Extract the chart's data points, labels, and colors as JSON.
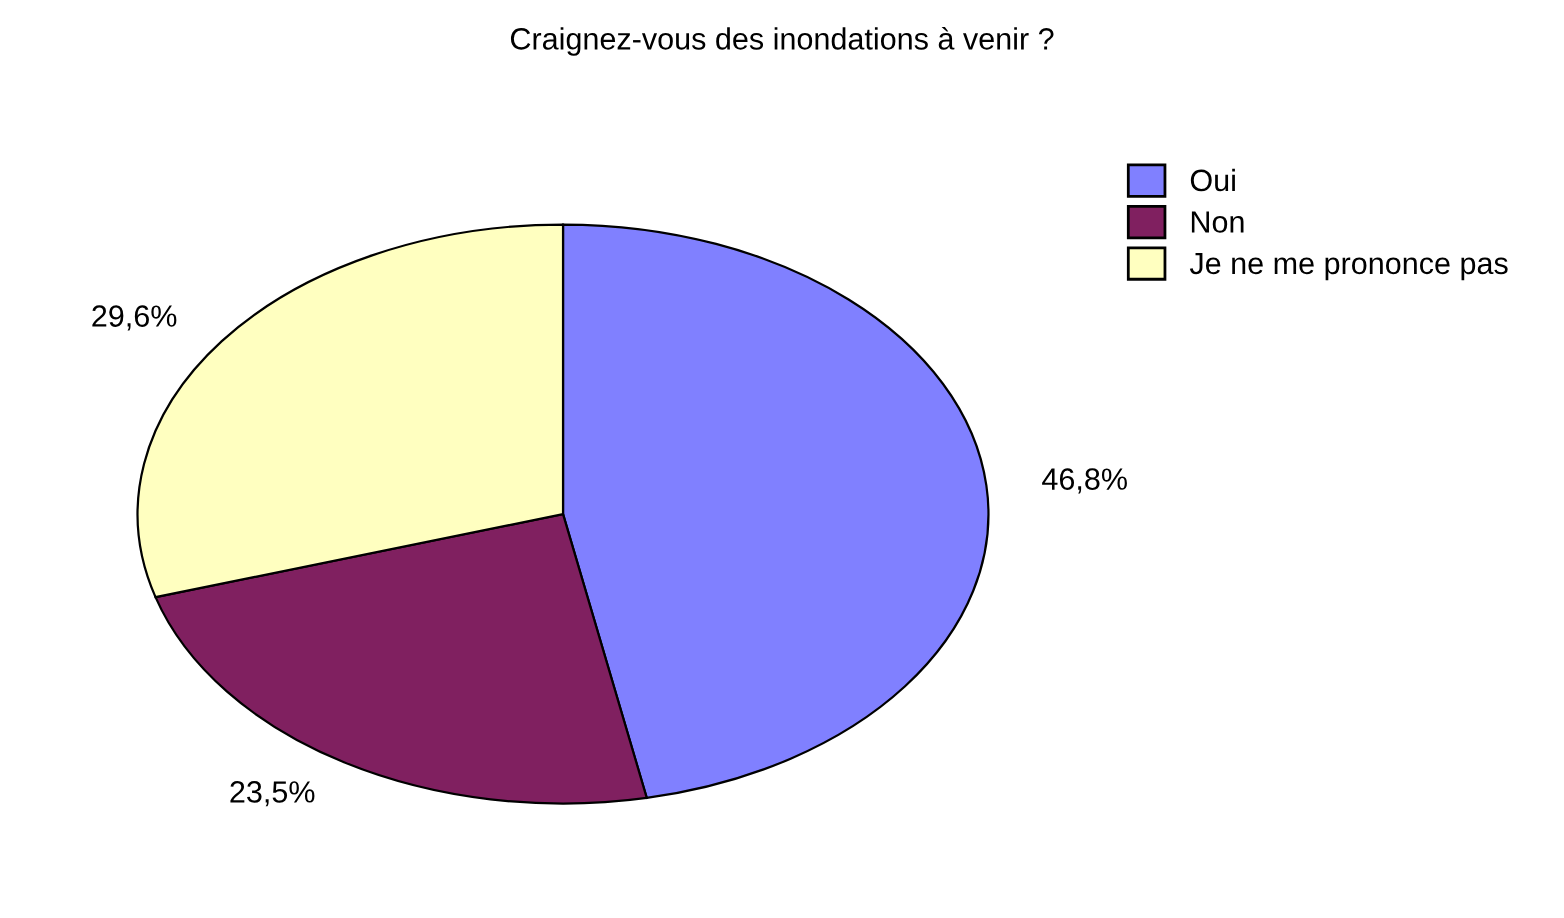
{
  "chart_data": {
    "type": "pie",
    "title": "Craignez-vous des inondations à venir ?",
    "categories": [
      "Oui",
      "Non",
      "Je ne me prononce pas"
    ],
    "values": [
      46.8,
      23.5,
      29.6
    ],
    "value_labels": [
      "46,8%",
      "23,5%",
      "29,6%"
    ],
    "colors": [
      "#8080ff",
      "#802060",
      "#ffffc0"
    ],
    "legend": "top right"
  }
}
